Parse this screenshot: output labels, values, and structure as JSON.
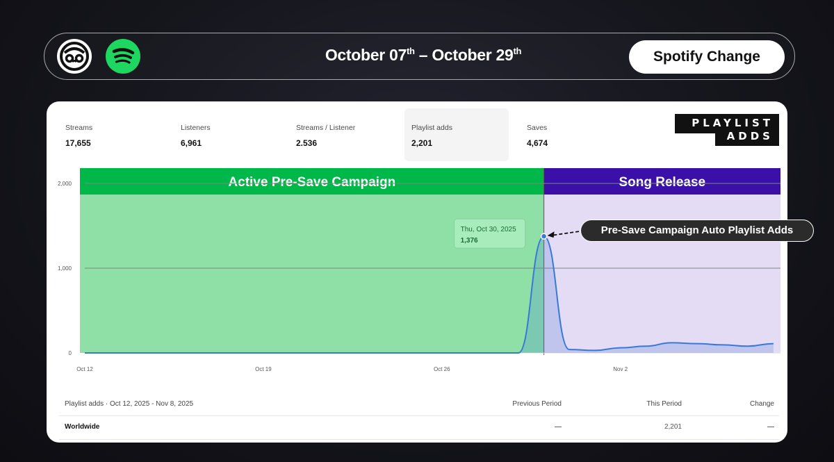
{
  "header": {
    "date_start": "October 07",
    "date_start_sup": "th",
    "date_sep": " – ",
    "date_end": "October 29",
    "date_end_sup": "th",
    "button_label": "Spotify Change",
    "brand_icon": "monkey-face-logo",
    "spotify_icon": "spotify-logo"
  },
  "metrics": [
    {
      "label": "Streams",
      "value": "17,655"
    },
    {
      "label": "Listeners",
      "value": "6,961"
    },
    {
      "label": "Streams / Listener",
      "value": "2.536"
    },
    {
      "label": "Playlist adds",
      "value": "2,201"
    },
    {
      "label": "Saves",
      "value": "4,674"
    }
  ],
  "brand_badge": {
    "line1": "PLAYLIST",
    "line2": "ADDS"
  },
  "callout": "Pre-Save Campaign Auto Playlist Adds",
  "chart_data": {
    "type": "area",
    "series": [
      {
        "name": "Playlist adds",
        "dates": [
          "2025-10-12",
          "2025-10-19",
          "2025-10-26",
          "2025-10-29",
          "2025-10-30",
          "2025-10-31",
          "2025-11-01",
          "2025-11-02",
          "2025-11-03",
          "2025-11-04",
          "2025-11-05",
          "2025-11-06",
          "2025-11-07",
          "2025-11-08"
        ],
        "values": [
          0,
          0,
          0,
          0,
          1376,
          40,
          30,
          60,
          80,
          120,
          110,
          95,
          80,
          110
        ],
        "color": "#3a78d8"
      }
    ],
    "x_ticks": [
      "Oct 12",
      "Oct 19",
      "Oct 26",
      "Nov 2"
    ],
    "y_ticks": [
      "0",
      "1,000",
      "2,000"
    ],
    "ylim": [
      0,
      2000
    ],
    "grid": "horizontal",
    "regions": [
      {
        "label": "Active Pre-Save Campaign",
        "start": "2025-10-12",
        "end": "2025-10-30",
        "header_color": "#00b84a",
        "fill_color": "#8ee0a6"
      },
      {
        "label": "Song Release",
        "start": "2025-10-30",
        "end": "2025-11-08",
        "header_color": "#3b10a8",
        "fill_color": "#e4dcf4"
      }
    ],
    "tooltip": {
      "date": "Thu, Oct 30, 2025",
      "value": "1,376"
    }
  },
  "table": {
    "title": "Playlist adds · Oct 12, 2025 - Nov 8, 2025",
    "col_prev": "Previous Period",
    "col_this": "This Period",
    "col_change": "Change",
    "rows": [
      {
        "region": "Worldwide",
        "prev": "—",
        "this": "2,201",
        "change": "—"
      }
    ]
  }
}
